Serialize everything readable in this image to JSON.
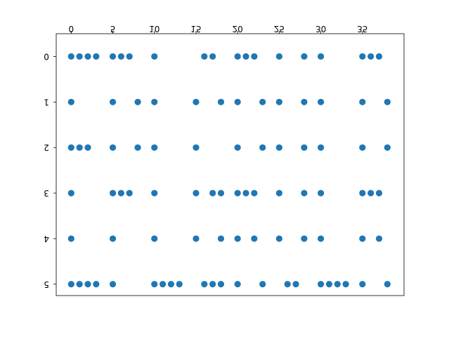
{
  "chart_data": {
    "type": "scatter",
    "title": "",
    "xlabel": "",
    "ylabel": "",
    "xlim": [
      -1.8,
      40
    ],
    "ylim": [
      -0.5,
      5.25
    ],
    "x_axis_position": "top",
    "x_ticks": [
      0,
      5,
      10,
      15,
      20,
      25,
      30,
      35
    ],
    "y_ticks": [
      0,
      1,
      2,
      3,
      4,
      5
    ],
    "text_mirrored": true,
    "y_inverted": true,
    "grid": false,
    "legend": "none",
    "marker_color": "#1f77b4",
    "points": [
      {
        "x": 0,
        "y": 0
      },
      {
        "x": 1,
        "y": 0
      },
      {
        "x": 2,
        "y": 0
      },
      {
        "x": 3,
        "y": 0
      },
      {
        "x": 5,
        "y": 0
      },
      {
        "x": 6,
        "y": 0
      },
      {
        "x": 7,
        "y": 0
      },
      {
        "x": 10,
        "y": 0
      },
      {
        "x": 16,
        "y": 0
      },
      {
        "x": 17,
        "y": 0
      },
      {
        "x": 20,
        "y": 0
      },
      {
        "x": 21,
        "y": 0
      },
      {
        "x": 22,
        "y": 0
      },
      {
        "x": 25,
        "y": 0
      },
      {
        "x": 28,
        "y": 0
      },
      {
        "x": 30,
        "y": 0
      },
      {
        "x": 35,
        "y": 0
      },
      {
        "x": 36,
        "y": 0
      },
      {
        "x": 37,
        "y": 0
      },
      {
        "x": 0,
        "y": 1
      },
      {
        "x": 5,
        "y": 1
      },
      {
        "x": 8,
        "y": 1
      },
      {
        "x": 10,
        "y": 1
      },
      {
        "x": 15,
        "y": 1
      },
      {
        "x": 18,
        "y": 1
      },
      {
        "x": 20,
        "y": 1
      },
      {
        "x": 23,
        "y": 1
      },
      {
        "x": 25,
        "y": 1
      },
      {
        "x": 28,
        "y": 1
      },
      {
        "x": 30,
        "y": 1
      },
      {
        "x": 35,
        "y": 1
      },
      {
        "x": 38,
        "y": 1
      },
      {
        "x": 0,
        "y": 2
      },
      {
        "x": 1,
        "y": 2
      },
      {
        "x": 2,
        "y": 2
      },
      {
        "x": 5,
        "y": 2
      },
      {
        "x": 8,
        "y": 2
      },
      {
        "x": 10,
        "y": 2
      },
      {
        "x": 15,
        "y": 2
      },
      {
        "x": 20,
        "y": 2
      },
      {
        "x": 23,
        "y": 2
      },
      {
        "x": 25,
        "y": 2
      },
      {
        "x": 28,
        "y": 2
      },
      {
        "x": 30,
        "y": 2
      },
      {
        "x": 35,
        "y": 2
      },
      {
        "x": 38,
        "y": 2
      },
      {
        "x": 0,
        "y": 3
      },
      {
        "x": 5,
        "y": 3
      },
      {
        "x": 6,
        "y": 3
      },
      {
        "x": 7,
        "y": 3
      },
      {
        "x": 10,
        "y": 3
      },
      {
        "x": 15,
        "y": 3
      },
      {
        "x": 17,
        "y": 3
      },
      {
        "x": 18,
        "y": 3
      },
      {
        "x": 20,
        "y": 3
      },
      {
        "x": 21,
        "y": 3
      },
      {
        "x": 22,
        "y": 3
      },
      {
        "x": 25,
        "y": 3
      },
      {
        "x": 28,
        "y": 3
      },
      {
        "x": 30,
        "y": 3
      },
      {
        "x": 35,
        "y": 3
      },
      {
        "x": 36,
        "y": 3
      },
      {
        "x": 37,
        "y": 3
      },
      {
        "x": 0,
        "y": 4
      },
      {
        "x": 5,
        "y": 4
      },
      {
        "x": 10,
        "y": 4
      },
      {
        "x": 15,
        "y": 4
      },
      {
        "x": 18,
        "y": 4
      },
      {
        "x": 20,
        "y": 4
      },
      {
        "x": 22,
        "y": 4
      },
      {
        "x": 25,
        "y": 4
      },
      {
        "x": 28,
        "y": 4
      },
      {
        "x": 30,
        "y": 4
      },
      {
        "x": 35,
        "y": 4
      },
      {
        "x": 37,
        "y": 4
      },
      {
        "x": 0,
        "y": 5
      },
      {
        "x": 1,
        "y": 5
      },
      {
        "x": 2,
        "y": 5
      },
      {
        "x": 3,
        "y": 5
      },
      {
        "x": 5,
        "y": 5
      },
      {
        "x": 10,
        "y": 5
      },
      {
        "x": 11,
        "y": 5
      },
      {
        "x": 12,
        "y": 5
      },
      {
        "x": 13,
        "y": 5
      },
      {
        "x": 16,
        "y": 5
      },
      {
        "x": 17,
        "y": 5
      },
      {
        "x": 18,
        "y": 5
      },
      {
        "x": 20,
        "y": 5
      },
      {
        "x": 23,
        "y": 5
      },
      {
        "x": 26,
        "y": 5
      },
      {
        "x": 27,
        "y": 5
      },
      {
        "x": 30,
        "y": 5
      },
      {
        "x": 31,
        "y": 5
      },
      {
        "x": 32,
        "y": 5
      },
      {
        "x": 33,
        "y": 5
      },
      {
        "x": 35,
        "y": 5
      },
      {
        "x": 38,
        "y": 5
      }
    ]
  }
}
